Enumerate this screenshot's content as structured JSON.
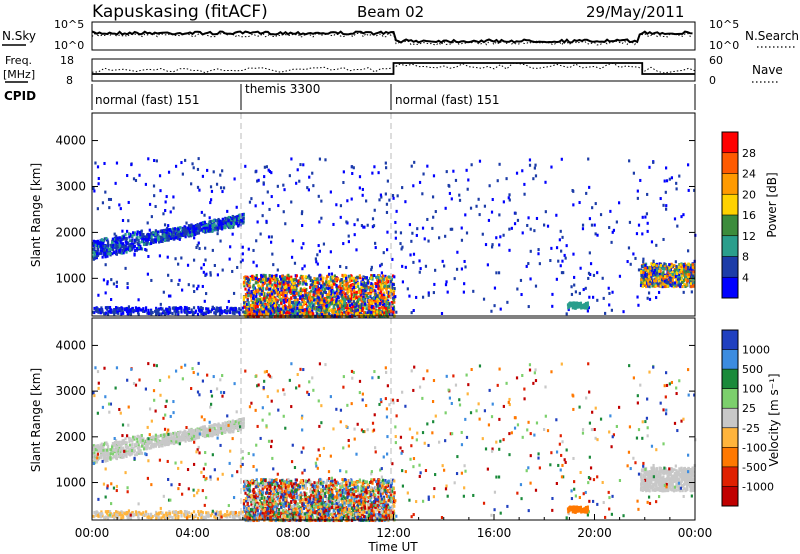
{
  "header": {
    "station": "Kapuskasing (fitACF)",
    "beam": "Beam 02",
    "date": "29/May/2011"
  },
  "chart_data": [
    {
      "type": "line",
      "panel": "noise",
      "left_label": "N.Sky",
      "right_label": "N.Search",
      "left_ticks": [
        "10^5",
        "10^0"
      ],
      "right_ticks": [
        "10^5",
        "10^0"
      ],
      "yscale": "log"
    },
    {
      "type": "line",
      "panel": "frequency",
      "left_label": "Freq.",
      "left_unit": "[MHz]",
      "right_label": "Nave",
      "left_ticks": [
        "18",
        "8"
      ],
      "right_ticks": [
        "60",
        "0"
      ]
    },
    {
      "type": "table",
      "panel": "cpid",
      "label": "CPID",
      "segments": [
        {
          "name": "normal (fast) 151",
          "start_hour": 0,
          "end_hour": 6
        },
        {
          "name": "themis 3300",
          "start_hour": 6,
          "end_hour": 12
        },
        {
          "name": "normal (fast) 151",
          "start_hour": 12,
          "end_hour": 24
        }
      ]
    },
    {
      "type": "scatter",
      "panel": "power",
      "ylabel": "Slant Range [km]",
      "yticks": [
        1000,
        2000,
        3000,
        4000
      ],
      "ylim": [
        180,
        4600
      ],
      "colorbar_label": "Power [dB]",
      "colorbar_ticks": [
        "28",
        "24",
        "20",
        "16",
        "12",
        "8",
        "4"
      ],
      "colorbar_colors": [
        "#ff0000",
        "#ff5a00",
        "#ff9a00",
        "#ffd200",
        "#3c8c3c",
        "#2a9e8c",
        "#1c3ca8",
        "#0000ff"
      ]
    },
    {
      "type": "scatter",
      "panel": "velocity",
      "ylabel": "Slant Range [km]",
      "yticks": [
        1000,
        2000,
        3000,
        4000
      ],
      "ylim": [
        180,
        4600
      ],
      "colorbar_label": "Velocity [m s⁻¹]",
      "colorbar_ticks": [
        "1000",
        "500",
        "100",
        "25",
        "-25",
        "-100",
        "-500",
        "-1000"
      ],
      "colorbar_colors": [
        "#2040c0",
        "#3c8ce0",
        "#1a8a3a",
        "#7cd06c",
        "#c8c8c8",
        "#ffb43c",
        "#ff7800",
        "#e02000",
        "#c00000"
      ]
    }
  ],
  "xaxis": {
    "label": "Time UT",
    "ticks": [
      "00:00",
      "04:00",
      "08:00",
      "12:00",
      "16:00",
      "20:00",
      "00:00"
    ],
    "tick_hours": [
      0,
      4,
      8,
      12,
      16,
      20,
      24
    ]
  }
}
